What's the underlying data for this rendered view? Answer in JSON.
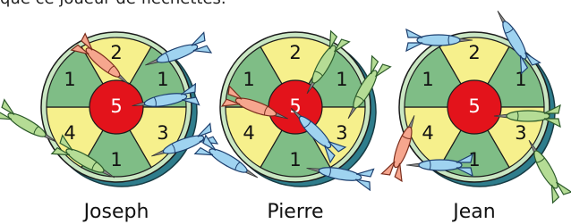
{
  "header": {
    "text": "que ce joueur de fléchettes."
  },
  "boards": [
    {
      "name": "Joseph",
      "sectors": [
        "2",
        "1",
        "3",
        "1",
        "4",
        "1"
      ],
      "center": "5"
    },
    {
      "name": "Pierre",
      "sectors": [
        "2",
        "1",
        "3",
        "1",
        "4",
        "1"
      ],
      "center": "5"
    },
    {
      "name": "Jean",
      "sectors": [
        "2",
        "1",
        "3",
        "1",
        "4",
        "1"
      ],
      "center": "5"
    }
  ]
}
